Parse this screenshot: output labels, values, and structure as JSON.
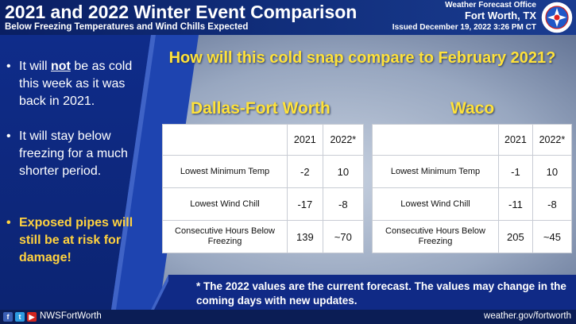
{
  "header": {
    "title": "2021 and 2022 Winter Event Comparison",
    "subtitle": "Below Freezing Temperatures and Wind Chills Expected",
    "office_line1": "Weather Forecast Office",
    "office_line2": "Fort Worth, TX",
    "issued": "Issued December 19, 2022 3:26 PM CT",
    "logo_icon": "noaa-nws-logo-icon"
  },
  "bullets": [
    {
      "bullet": "•",
      "text_before": "It will ",
      "emphasis": "not",
      "text_after": " be as cold this week as it was back in 2021."
    },
    {
      "bullet": "•",
      "text": "It will stay below freezing for a much shorter period."
    },
    {
      "bullet": "•",
      "text": "Exposed pipes will still be at risk for damage!"
    }
  ],
  "question": "How will this cold snap compare to February 2021?",
  "tables": [
    {
      "city": "Dallas-Fort Worth",
      "col1": "2021",
      "col2": "2022*",
      "rows": [
        {
          "label": "Lowest Minimum Temp",
          "v2021": "-2",
          "v2022": "10"
        },
        {
          "label": "Lowest Wind Chill",
          "v2021": "-17",
          "v2022": "-8"
        },
        {
          "label": "Consecutive Hours Below Freezing",
          "v2021": "139",
          "v2022": "~70"
        }
      ]
    },
    {
      "city": "Waco",
      "col1": "2021",
      "col2": "2022*",
      "rows": [
        {
          "label": "Lowest Minimum Temp",
          "v2021": "-1",
          "v2022": "10"
        },
        {
          "label": "Lowest Wind Chill",
          "v2021": "-11",
          "v2022": "-8"
        },
        {
          "label": "Consecutive Hours Below Freezing",
          "v2021": "205",
          "v2022": "~45"
        }
      ]
    }
  ],
  "footnote": "* The 2022 values are the current forecast. The values may change in the coming days with new updates.",
  "footer": {
    "facebook": "f",
    "twitter": "t",
    "youtube": "▶",
    "handle": "NWSFortWorth",
    "website": "weather.gov/fortworth"
  },
  "colors": {
    "navy": "#0f2c8a",
    "yellow_heading": "#ffe23a",
    "yellow_bullet": "#ffd23f"
  }
}
